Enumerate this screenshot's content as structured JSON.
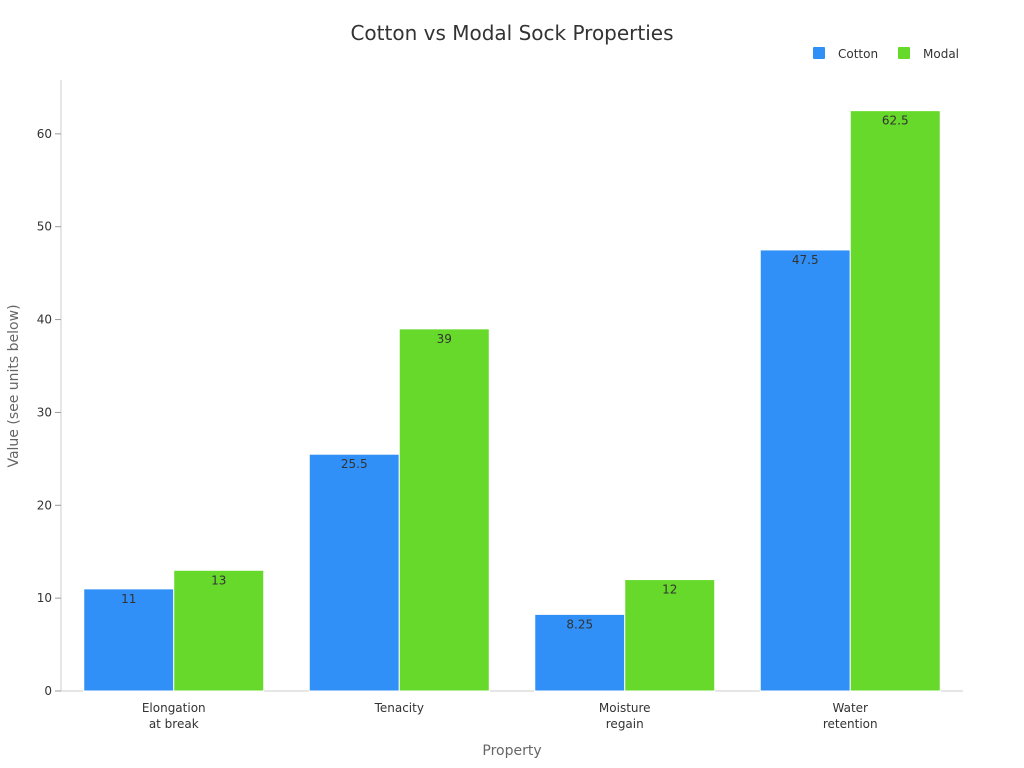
{
  "chart_data": {
    "type": "bar",
    "title": "Cotton vs Modal Sock Properties",
    "xlabel": "Property",
    "ylabel": "Value (see units below)",
    "categories": [
      [
        "Elongation",
        "at break"
      ],
      [
        "Tenacity"
      ],
      [
        "Moisture",
        "regain"
      ],
      [
        "Water",
        "retention"
      ]
    ],
    "series": [
      {
        "name": "Cotton",
        "color": "#3090f7",
        "values": [
          11,
          25.5,
          8.25,
          47.5
        ],
        "labels": [
          "11",
          "25.5",
          "8.25",
          "47.5"
        ]
      },
      {
        "name": "Modal",
        "color": "#66d92a",
        "values": [
          13,
          39,
          12,
          62.5
        ],
        "labels": [
          "13",
          "39",
          "12",
          "62.5"
        ]
      }
    ],
    "yticks": [
      0,
      10,
      20,
      30,
      40,
      50,
      60
    ],
    "ylim": [
      0,
      65.8
    ],
    "grid": false,
    "legend_position": "top-right"
  }
}
